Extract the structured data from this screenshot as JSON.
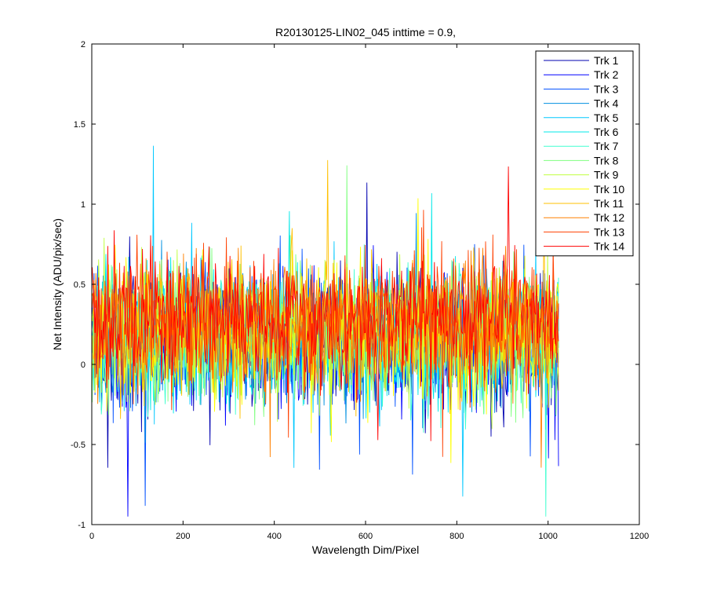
{
  "chart_data": {
    "type": "line",
    "title": "R20130125-LIN02_045 inttime = 0.9,",
    "xlabel": "Wavelength Dim/Pixel",
    "ylabel": "Net Intensity (ADU/pix/sec)",
    "xlim": [
      0,
      1200
    ],
    "ylim": [
      -1,
      2
    ],
    "x_ticks": [
      0,
      200,
      400,
      600,
      800,
      1000,
      1200
    ],
    "y_ticks": [
      -1,
      -0.5,
      0,
      0.5,
      1,
      1.5,
      2
    ],
    "x_tick_labels": [
      "0",
      "200",
      "400",
      "600",
      "800",
      "1000",
      "1200"
    ],
    "y_tick_labels": [
      "-1",
      "-0.5",
      "0",
      "0.5",
      "1",
      "1.5",
      "2"
    ],
    "grid": false,
    "legend_position": "top-right",
    "x_range": [
      1,
      1024
    ],
    "series": [
      {
        "name": "Trk 1",
        "color": "#0000b0",
        "mean": 0.12,
        "spread": 0.32
      },
      {
        "name": "Trk 2",
        "color": "#0000ff",
        "mean": 0.14,
        "spread": 0.32
      },
      {
        "name": "Trk 3",
        "color": "#0050ff",
        "mean": 0.15,
        "spread": 0.32
      },
      {
        "name": "Trk 4",
        "color": "#0090e0",
        "mean": 0.16,
        "spread": 0.32
      },
      {
        "name": "Trk 5",
        "color": "#00c8ff",
        "mean": 0.17,
        "spread": 0.32
      },
      {
        "name": "Trk 6",
        "color": "#00e8e8",
        "mean": 0.17,
        "spread": 0.32
      },
      {
        "name": "Trk 7",
        "color": "#40ffd0",
        "mean": 0.18,
        "spread": 0.32
      },
      {
        "name": "Trk 8",
        "color": "#80ff80",
        "mean": 0.19,
        "spread": 0.32
      },
      {
        "name": "Trk 9",
        "color": "#c0ff40",
        "mean": 0.2,
        "spread": 0.32
      },
      {
        "name": "Trk 10",
        "color": "#ffff00",
        "mean": 0.21,
        "spread": 0.32
      },
      {
        "name": "Trk 11",
        "color": "#ffc000",
        "mean": 0.23,
        "spread": 0.32
      },
      {
        "name": "Trk 12",
        "color": "#ff8000",
        "mean": 0.25,
        "spread": 0.32
      },
      {
        "name": "Trk 13",
        "color": "#ff4000",
        "mean": 0.27,
        "spread": 0.32
      },
      {
        "name": "Trk 14",
        "color": "#ff0000",
        "mean": 0.3,
        "spread": 0.3
      }
    ]
  }
}
